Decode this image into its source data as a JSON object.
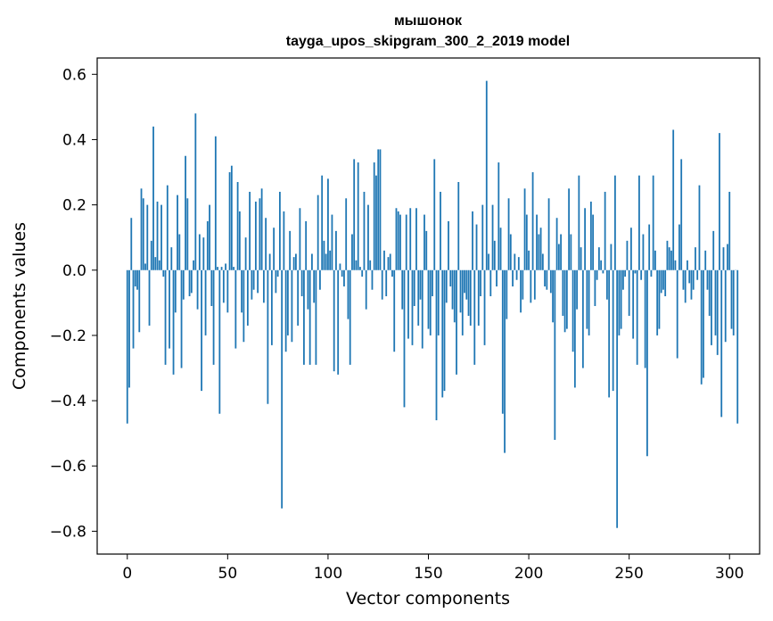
{
  "chart_data": {
    "type": "bar",
    "title": "мышонок",
    "subtitle": "tayga_upos_skipgram_300_2_2019 model",
    "xlabel": "Vector components",
    "ylabel": "Components values",
    "xlim": [
      -15,
      315
    ],
    "ylim": [
      -0.87,
      0.65
    ],
    "xticks": [
      0,
      50,
      100,
      150,
      200,
      250,
      300
    ],
    "yticks": [
      -0.8,
      -0.6,
      -0.4,
      -0.2,
      0.0,
      0.2,
      0.4,
      0.6
    ],
    "ytick_labels": [
      "−0.8",
      "−0.6",
      "−0.4",
      "−0.2",
      "0.0",
      "0.2",
      "0.4",
      "0.6"
    ],
    "bar_color": "#1f77b4",
    "grid": false,
    "series": [
      {
        "values": [
          -0.47,
          -0.36,
          0.16,
          -0.24,
          -0.05,
          -0.06,
          -0.19,
          0.25,
          0.22,
          0.02,
          0.2,
          -0.17,
          0.09,
          0.44,
          0.04,
          0.21,
          0.03,
          0.2,
          -0.02,
          -0.29,
          0.26,
          -0.24,
          0.07,
          -0.32,
          -0.13,
          0.23,
          0.11,
          -0.3,
          -0.09,
          0.35,
          0.22,
          -0.08,
          -0.07,
          0.03,
          0.48,
          -0.12,
          0.11,
          -0.37,
          0.1,
          -0.2,
          0.15,
          0.2,
          -0.11,
          -0.29,
          0.41,
          0.01,
          -0.44,
          0.01,
          -0.1,
          0.02,
          -0.13,
          0.3,
          0.32,
          0.01,
          -0.24,
          0.27,
          0.18,
          -0.13,
          -0.22,
          0.1,
          -0.17,
          0.24,
          -0.09,
          -0.06,
          0.21,
          -0.07,
          0.22,
          0.25,
          -0.1,
          0.16,
          -0.41,
          0.05,
          -0.23,
          0.13,
          -0.07,
          -0.02,
          0.24,
          -0.73,
          0.18,
          -0.25,
          -0.2,
          0.12,
          -0.22,
          0.04,
          0.05,
          -0.17,
          0.19,
          -0.08,
          -0.29,
          0.15,
          -0.12,
          -0.29,
          0.05,
          -0.1,
          -0.29,
          0.23,
          -0.06,
          0.29,
          0.09,
          0.05,
          0.28,
          0.06,
          0.17,
          -0.31,
          0.12,
          -0.32,
          0.02,
          -0.02,
          -0.05,
          0.22,
          -0.15,
          -0.29,
          0.11,
          0.34,
          0.03,
          0.33,
          0.01,
          -0.02,
          0.24,
          -0.12,
          0.2,
          0.03,
          -0.06,
          0.33,
          0.29,
          0.37,
          0.37,
          -0.09,
          0.06,
          -0.08,
          0.04,
          0.05,
          -0.02,
          -0.25,
          0.19,
          0.18,
          0.17,
          -0.12,
          -0.42,
          0.17,
          -0.21,
          0.19,
          -0.23,
          -0.11,
          0.19,
          -0.17,
          -0.09,
          -0.24,
          0.17,
          0.12,
          -0.18,
          -0.2,
          -0.08,
          0.34,
          -0.46,
          -0.2,
          0.24,
          -0.39,
          -0.37,
          -0.1,
          0.15,
          -0.05,
          -0.12,
          -0.16,
          -0.32,
          0.27,
          -0.13,
          -0.2,
          -0.07,
          -0.09,
          -0.14,
          -0.17,
          0.18,
          -0.29,
          0.14,
          -0.17,
          -0.08,
          0.2,
          -0.23,
          0.58,
          0.05,
          -0.08,
          0.2,
          0.09,
          -0.05,
          0.33,
          0.13,
          -0.44,
          -0.56,
          -0.15,
          0.22,
          0.11,
          -0.05,
          0.05,
          -0.03,
          0.04,
          -0.13,
          -0.09,
          0.25,
          0.17,
          0.06,
          -0.1,
          0.3,
          -0.09,
          0.17,
          0.11,
          0.13,
          0.05,
          -0.05,
          -0.06,
          0.22,
          -0.07,
          -0.16,
          -0.52,
          0.16,
          0.08,
          0.11,
          -0.14,
          -0.19,
          -0.18,
          0.25,
          0.11,
          -0.25,
          -0.36,
          -0.12,
          0.29,
          0.07,
          -0.3,
          0.19,
          -0.18,
          -0.2,
          0.21,
          0.17,
          -0.11,
          -0.03,
          0.07,
          0.03,
          -0.01,
          0.24,
          -0.09,
          -0.39,
          0.08,
          -0.37,
          0.29,
          -0.79,
          -0.2,
          -0.18,
          -0.06,
          -0.02,
          0.09,
          -0.14,
          0.13,
          -0.21,
          -0.01,
          -0.29,
          0.29,
          -0.03,
          0.11,
          -0.3,
          -0.57,
          0.14,
          -0.02,
          0.29,
          0.06,
          -0.2,
          -0.18,
          -0.07,
          -0.06,
          -0.08,
          0.09,
          0.07,
          0.06,
          0.43,
          0.03,
          -0.27,
          0.14,
          0.34,
          -0.06,
          -0.1,
          0.03,
          -0.04,
          -0.09,
          -0.06,
          0.07,
          -0.03,
          0.26,
          -0.35,
          -0.33,
          0.06,
          -0.06,
          -0.14,
          -0.23,
          0.12,
          -0.2,
          -0.26,
          0.42,
          -0.45,
          0.07,
          -0.22,
          0.08,
          0.24,
          -0.18,
          -0.2,
          0.0,
          -0.47
        ]
      }
    ]
  }
}
